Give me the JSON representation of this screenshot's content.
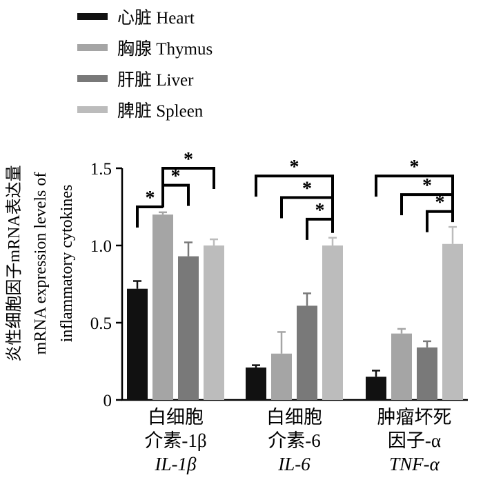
{
  "chart_data": {
    "type": "bar",
    "ylabel": [
      "炎性细胞因子mRNA表达量",
      "mRNA expression levels of",
      "inflammatory cytokines"
    ],
    "ylim": [
      0,
      1.5
    ],
    "yticks": [
      {
        "value": 0,
        "label": "0"
      },
      {
        "value": 0.5,
        "label": "0.5"
      },
      {
        "value": 1.0,
        "label": "1.0"
      },
      {
        "value": 1.5,
        "label": "1.5"
      }
    ],
    "grid": false,
    "legend_position": "top-left",
    "series": [
      {
        "name": "心脏  Heart",
        "color": "#111111"
      },
      {
        "name": "胸腺  Thymus",
        "color": "#a5a5a5"
      },
      {
        "name": "肝脏  Liver",
        "color": "#797979"
      },
      {
        "name": "脾脏  Spleen",
        "color": "#bcbcbc"
      }
    ],
    "groups": [
      {
        "label": [
          "白细胞",
          "介素-1β",
          "IL-1β"
        ],
        "values": [
          0.72,
          1.2,
          0.93,
          1.0
        ],
        "errors": [
          0.05,
          0.015,
          0.09,
          0.04
        ]
      },
      {
        "label": [
          "白细胞",
          "介素-6",
          "IL-6"
        ],
        "values": [
          0.21,
          0.3,
          0.61,
          1.0
        ],
        "errors": [
          0.015,
          0.14,
          0.08,
          0.05
        ]
      },
      {
        "label": [
          "肿瘤坏死",
          "因子-α",
          "TNF-α"
        ],
        "values": [
          0.15,
          0.43,
          0.34,
          1.01
        ],
        "errors": [
          0.04,
          0.03,
          0.04,
          0.11
        ]
      }
    ],
    "significance": [
      {
        "group": 0,
        "from": 0,
        "to": 1,
        "level": 1.25,
        "mark": "*"
      },
      {
        "group": 0,
        "from": 1,
        "to": 2,
        "level": 1.39,
        "mark": "*"
      },
      {
        "group": 0,
        "from": 1,
        "to": 3,
        "level": 1.5,
        "mark": "*"
      },
      {
        "group": 1,
        "from": 0,
        "to": 3,
        "level": 1.45,
        "mark": "*"
      },
      {
        "group": 1,
        "from": 1,
        "to": 3,
        "level": 1.31,
        "mark": "*"
      },
      {
        "group": 1,
        "from": 2,
        "to": 3,
        "level": 1.17,
        "mark": "*"
      },
      {
        "group": 2,
        "from": 0,
        "to": 3,
        "level": 1.45,
        "mark": "*"
      },
      {
        "group": 2,
        "from": 1,
        "to": 3,
        "level": 1.33,
        "mark": "*"
      },
      {
        "group": 2,
        "from": 2,
        "to": 3,
        "level": 1.22,
        "mark": "*"
      }
    ]
  }
}
